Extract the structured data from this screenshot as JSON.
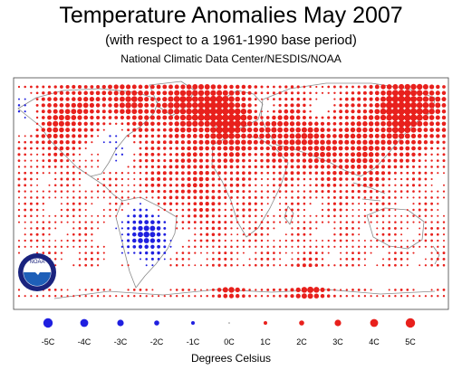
{
  "header": {
    "title": "Temperature Anomalies May 2007",
    "subtitle": "(with respect to a 1961-1990 base period)",
    "source": "National Climatic Data Center/NESDIS/NOAA"
  },
  "logo": {
    "text": "NOAA",
    "icon": "noaa-seagull-logo"
  },
  "map": {
    "projection": "equirectangular",
    "extent": "world"
  },
  "legend": {
    "units": "Degrees Celsius",
    "items": [
      {
        "label": "-5C",
        "value": -5,
        "color": "#1f1fe0"
      },
      {
        "label": "-4C",
        "value": -4,
        "color": "#1f1fe0"
      },
      {
        "label": "-3C",
        "value": -3,
        "color": "#1f1fe0"
      },
      {
        "label": "-2C",
        "value": -2,
        "color": "#1f1fe0"
      },
      {
        "label": "-1C",
        "value": -1,
        "color": "#1f1fe0"
      },
      {
        "label": "0C",
        "value": 0,
        "color": "#888888"
      },
      {
        "label": "1C",
        "value": 1,
        "color": "#e8201c"
      },
      {
        "label": "2C",
        "value": 2,
        "color": "#e8201c"
      },
      {
        "label": "3C",
        "value": 3,
        "color": "#e8201c"
      },
      {
        "label": "4C",
        "value": 4,
        "color": "#e8201c"
      },
      {
        "label": "5C",
        "value": 5,
        "color": "#e8201c"
      }
    ]
  },
  "colors": {
    "warm": "#e8201c",
    "cold": "#1f1fe0",
    "coast": "#8a8a8a",
    "frame": "#444444"
  }
}
